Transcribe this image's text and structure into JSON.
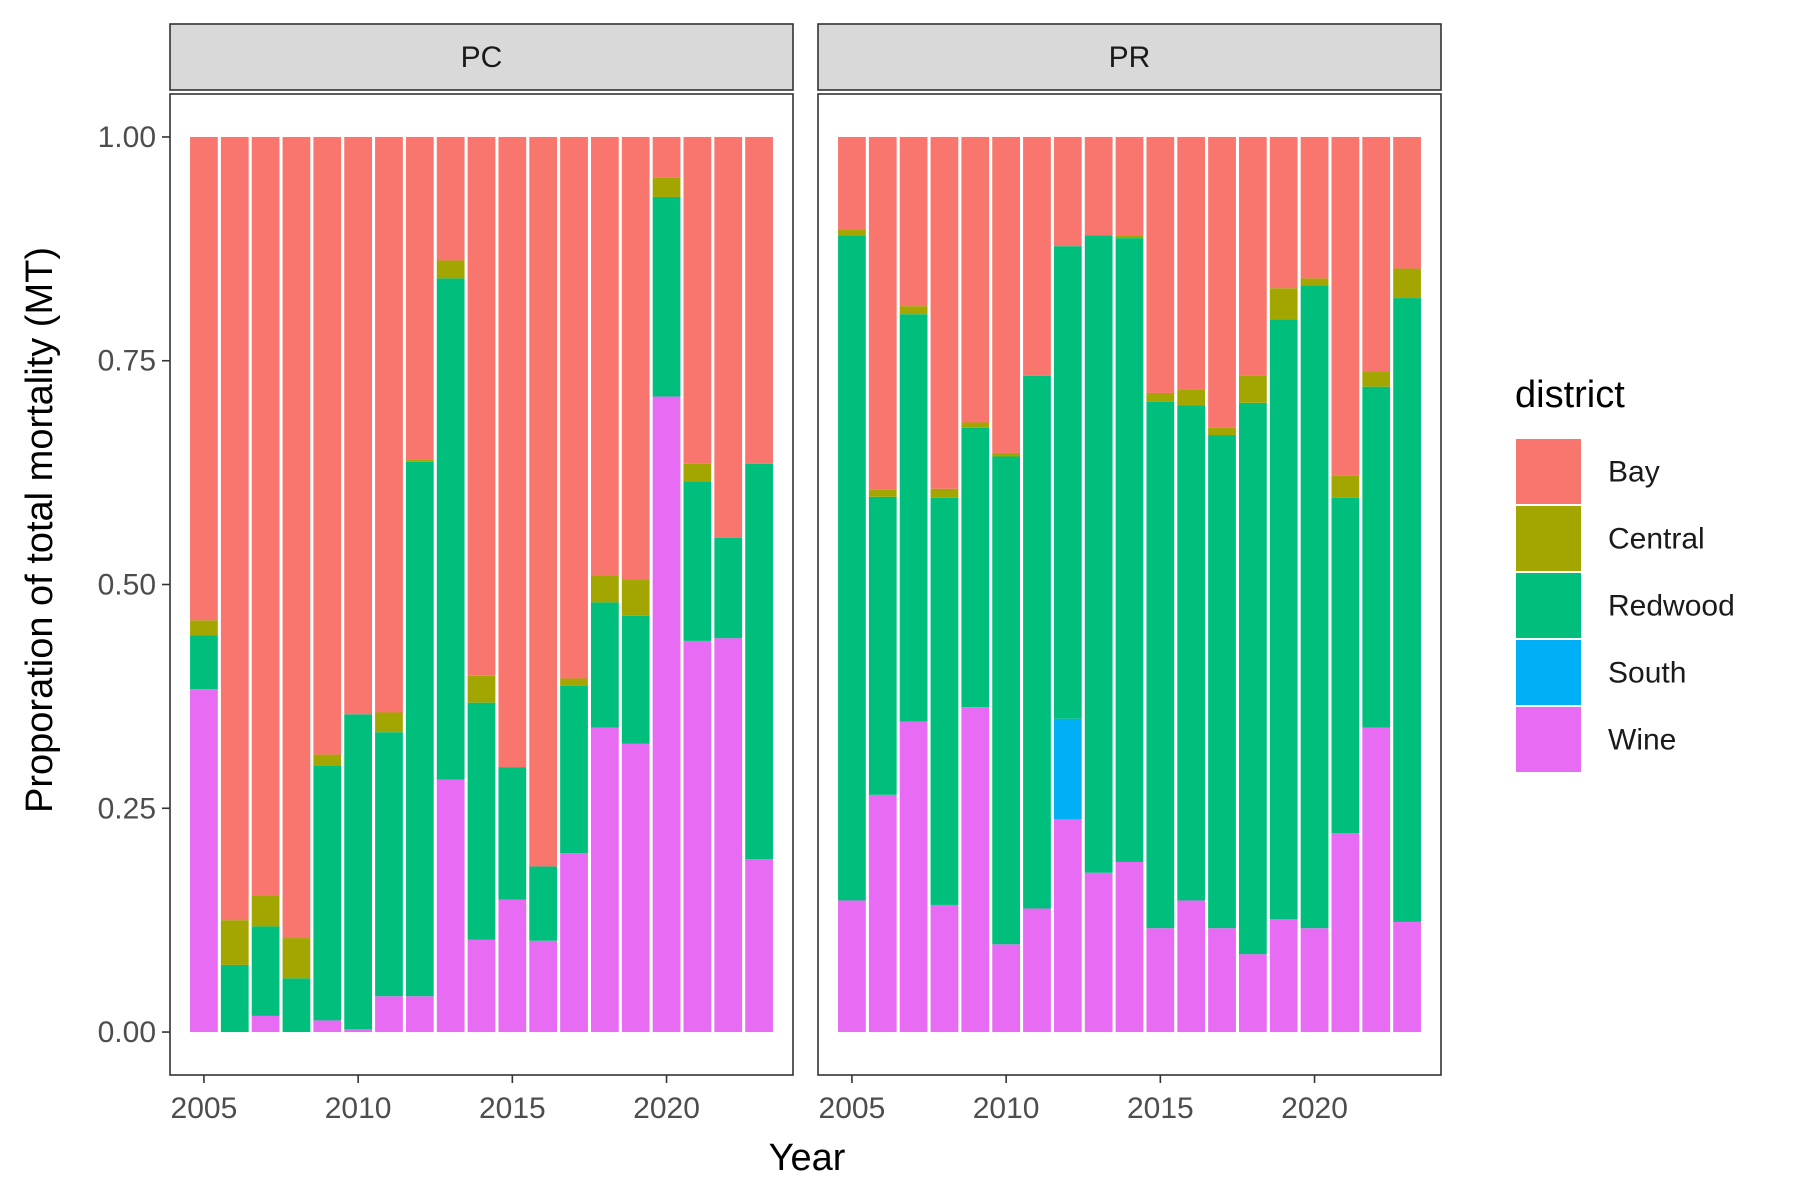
{
  "chart_data": {
    "type": "bar",
    "stacked": true,
    "xlabel": "Year",
    "ylabel": "Proporation of total mortality (MT)",
    "xlim": [
      2003.9,
      2024.1
    ],
    "ylim": [
      -0.048,
      1.048
    ],
    "x_ticks": [
      2005,
      2010,
      2015,
      2020
    ],
    "y_ticks": [
      "0.00",
      "0.25",
      "0.50",
      "0.75",
      "1.00"
    ],
    "y_tick_values": [
      0,
      0.25,
      0.5,
      0.75,
      1.0
    ],
    "grid": false,
    "legend": {
      "title": "district",
      "position": "right",
      "entries": [
        {
          "label": "Bay",
          "color": "#F8766D"
        },
        {
          "label": "Central",
          "color": "#A3A500"
        },
        {
          "label": "Redwood",
          "color": "#00BF7D"
        },
        {
          "label": "South",
          "color": "#00B0F6"
        },
        {
          "label": "Wine",
          "color": "#E76BF3"
        }
      ]
    },
    "stack_order_bottom_to_top": [
      "Wine",
      "South",
      "Redwood",
      "Central",
      "Bay"
    ],
    "panels": [
      {
        "strip": "PC",
        "x": [
          2005,
          2006,
          2007,
          2008,
          2009,
          2010,
          2011,
          2012,
          2013,
          2014,
          2015,
          2016,
          2017,
          2018,
          2019,
          2020,
          2021,
          2022,
          2023
        ],
        "series": [
          {
            "name": "Wine",
            "values": [
              0.383,
              0.0,
              0.018,
              0.0,
              0.013,
              0.003,
              0.04,
              0.04,
              0.282,
              0.103,
              0.148,
              0.102,
              0.2,
              0.34,
              0.322,
              0.71,
              0.437,
              0.44,
              0.193
            ]
          },
          {
            "name": "South",
            "values": [
              0,
              0,
              0,
              0,
              0,
              0,
              0,
              0,
              0,
              0,
              0,
              0,
              0,
              0,
              0,
              0,
              0,
              0,
              0
            ]
          },
          {
            "name": "Redwood",
            "values": [
              0.06,
              0.075,
              0.1,
              0.06,
              0.285,
              0.352,
              0.295,
              0.597,
              0.56,
              0.265,
              0.148,
              0.083,
              0.187,
              0.14,
              0.143,
              0.223,
              0.178,
              0.112,
              0.442
            ]
          },
          {
            "name": "Central",
            "values": [
              0.017,
              0.05,
              0.034,
              0.045,
              0.012,
              0.0,
              0.022,
              0.003,
              0.02,
              0.03,
              0.0,
              0.0,
              0.008,
              0.03,
              0.04,
              0.022,
              0.02,
              0.0,
              0.0
            ]
          },
          {
            "name": "Bay",
            "values": [
              0.54,
              0.875,
              0.848,
              0.895,
              0.69,
              0.645,
              0.643,
              0.36,
              0.138,
              0.602,
              0.704,
              0.815,
              0.605,
              0.49,
              0.495,
              0.045,
              0.365,
              0.448,
              0.365
            ]
          }
        ]
      },
      {
        "strip": "PR",
        "x": [
          2005,
          2006,
          2007,
          2008,
          2009,
          2010,
          2011,
          2012,
          2013,
          2014,
          2015,
          2016,
          2017,
          2018,
          2019,
          2020,
          2021,
          2022,
          2023
        ],
        "series": [
          {
            "name": "Wine",
            "values": [
              0.147,
              0.265,
              0.347,
              0.142,
              0.363,
              0.098,
              0.138,
              0.238,
              0.178,
              0.19,
              0.116,
              0.147,
              0.116,
              0.087,
              0.126,
              0.116,
              0.222,
              0.34,
              0.123
            ]
          },
          {
            "name": "South",
            "values": [
              0,
              0,
              0,
              0,
              0,
              0,
              0,
              0.112,
              0,
              0,
              0,
              0,
              0,
              0,
              0,
              0,
              0,
              0,
              0
            ]
          },
          {
            "name": "Redwood",
            "values": [
              0.743,
              0.333,
              0.455,
              0.455,
              0.312,
              0.545,
              0.595,
              0.528,
              0.712,
              0.697,
              0.588,
              0.553,
              0.551,
              0.616,
              0.67,
              0.718,
              0.375,
              0.381,
              0.697
            ]
          },
          {
            "name": "Central",
            "values": [
              0.007,
              0.008,
              0.009,
              0.01,
              0.006,
              0.004,
              0.0,
              0.0,
              0.0,
              0.003,
              0.01,
              0.018,
              0.008,
              0.03,
              0.035,
              0.008,
              0.025,
              0.017,
              0.033
            ]
          },
          {
            "name": "Bay",
            "values": [
              0.103,
              0.394,
              0.189,
              0.393,
              0.319,
              0.353,
              0.267,
              0.122,
              0.11,
              0.11,
              0.286,
              0.282,
              0.325,
              0.267,
              0.169,
              0.158,
              0.378,
              0.262,
              0.147
            ]
          }
        ]
      }
    ]
  }
}
